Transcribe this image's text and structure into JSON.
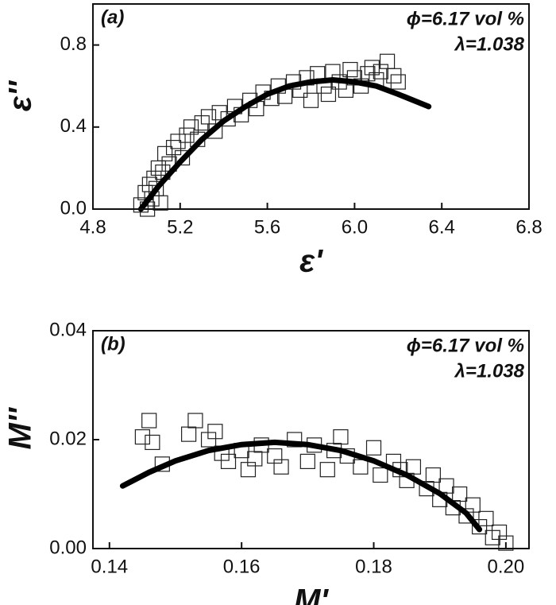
{
  "chart_data": [
    {
      "type": "scatter",
      "color": "#222222",
      "fit_color": "#000000",
      "x_label": "ε'",
      "y_label": "ε''",
      "annotations": [
        "(a)",
        "ϕ=6.17 vol %",
        "λ=1.038"
      ],
      "xlim": [
        4.8,
        6.8
      ],
      "ylim": [
        0,
        1.0
      ],
      "xticks": [
        4.8,
        5.2,
        5.6,
        {
          "value": 6,
          "label": "6.0"
        },
        6.4,
        6.8
      ],
      "yticks": [
        {
          "value": 0,
          "label": "0.0"
        },
        0.4,
        0.8
      ],
      "x": [
        5.02,
        5.04,
        5.05,
        5.06,
        5.07,
        5.08,
        5.09,
        5.1,
        5.11,
        5.12,
        5.13,
        5.15,
        5.17,
        5.19,
        5.21,
        5.23,
        5.25,
        5.28,
        5.3,
        5.33,
        5.36,
        5.38,
        5.42,
        5.45,
        5.48,
        5.52,
        5.55,
        5.58,
        5.62,
        5.65,
        5.68,
        5.72,
        5.75,
        5.78,
        5.8,
        5.83,
        5.86,
        5.88,
        5.9,
        5.93,
        5.96,
        5.98,
        6.0,
        6.03,
        6.06,
        6.08,
        6.1,
        6.12,
        6.15,
        6.18,
        6.2
      ],
      "values": [
        0.02,
        0.08,
        0.0,
        0.12,
        0.05,
        0.15,
        0.1,
        0.2,
        0.03,
        0.18,
        0.27,
        0.22,
        0.3,
        0.33,
        0.25,
        0.36,
        0.4,
        0.34,
        0.42,
        0.45,
        0.38,
        0.47,
        0.44,
        0.5,
        0.46,
        0.53,
        0.49,
        0.57,
        0.54,
        0.6,
        0.55,
        0.62,
        0.58,
        0.64,
        0.53,
        0.66,
        0.6,
        0.56,
        0.67,
        0.62,
        0.58,
        0.68,
        0.64,
        0.6,
        0.66,
        0.69,
        0.63,
        0.67,
        0.72,
        0.65,
        0.62
      ],
      "fit": {
        "x": [
          5.02,
          5.1,
          5.2,
          5.3,
          5.4,
          5.5,
          5.6,
          5.7,
          5.8,
          5.9,
          6.0,
          6.1,
          6.2,
          6.34
        ],
        "values": [
          0,
          0.11,
          0.23,
          0.34,
          0.43,
          0.5,
          0.56,
          0.6,
          0.62,
          0.63,
          0.62,
          0.6,
          0.56,
          0.5
        ]
      }
    },
    {
      "type": "scatter",
      "color": "#222222",
      "fit_color": "#000000",
      "x_label": "M'",
      "y_label": "M''",
      "annotations": [
        "(b)",
        "ϕ=6.17 vol %",
        "λ=1.038"
      ],
      "xlim": [
        0.1375,
        0.2035
      ],
      "ylim": [
        0,
        0.04
      ],
      "xticks": [
        0.14,
        0.16,
        0.18,
        {
          "value": 0.2,
          "label": "0.20"
        }
      ],
      "yticks": [
        {
          "value": 0,
          "label": "0.00"
        },
        0.02,
        0.04
      ],
      "x": [
        0.146,
        0.145,
        0.1465,
        0.148,
        0.152,
        0.153,
        0.155,
        0.156,
        0.158,
        0.16,
        0.161,
        0.163,
        0.165,
        0.166,
        0.168,
        0.17,
        0.171,
        0.173,
        0.175,
        0.176,
        0.178,
        0.18,
        0.181,
        0.183,
        0.185,
        0.186,
        0.188,
        0.189,
        0.19,
        0.191,
        0.192,
        0.193,
        0.194,
        0.195,
        0.196,
        0.197,
        0.198,
        0.199,
        0.2,
        0.162,
        0.157,
        0.174,
        0.184
      ],
      "values": [
        0.0235,
        0.0205,
        0.0195,
        0.0155,
        0.021,
        0.0235,
        0.02,
        0.0215,
        0.016,
        0.018,
        0.0145,
        0.019,
        0.017,
        0.015,
        0.02,
        0.016,
        0.019,
        0.0145,
        0.0205,
        0.017,
        0.015,
        0.0185,
        0.0135,
        0.016,
        0.0125,
        0.015,
        0.011,
        0.0135,
        0.009,
        0.0115,
        0.0075,
        0.01,
        0.006,
        0.008,
        0.004,
        0.0055,
        0.002,
        0.003,
        0.001,
        0.0165,
        0.0175,
        0.018,
        0.0145
      ],
      "fit": {
        "x": [
          0.142,
          0.146,
          0.15,
          0.155,
          0.16,
          0.165,
          0.17,
          0.175,
          0.18,
          0.185,
          0.19,
          0.194,
          0.196
        ],
        "values": [
          0.0115,
          0.014,
          0.0161,
          0.018,
          0.0191,
          0.0195,
          0.0191,
          0.018,
          0.0161,
          0.0135,
          0.0101,
          0.0065,
          0.0035
        ]
      }
    }
  ]
}
